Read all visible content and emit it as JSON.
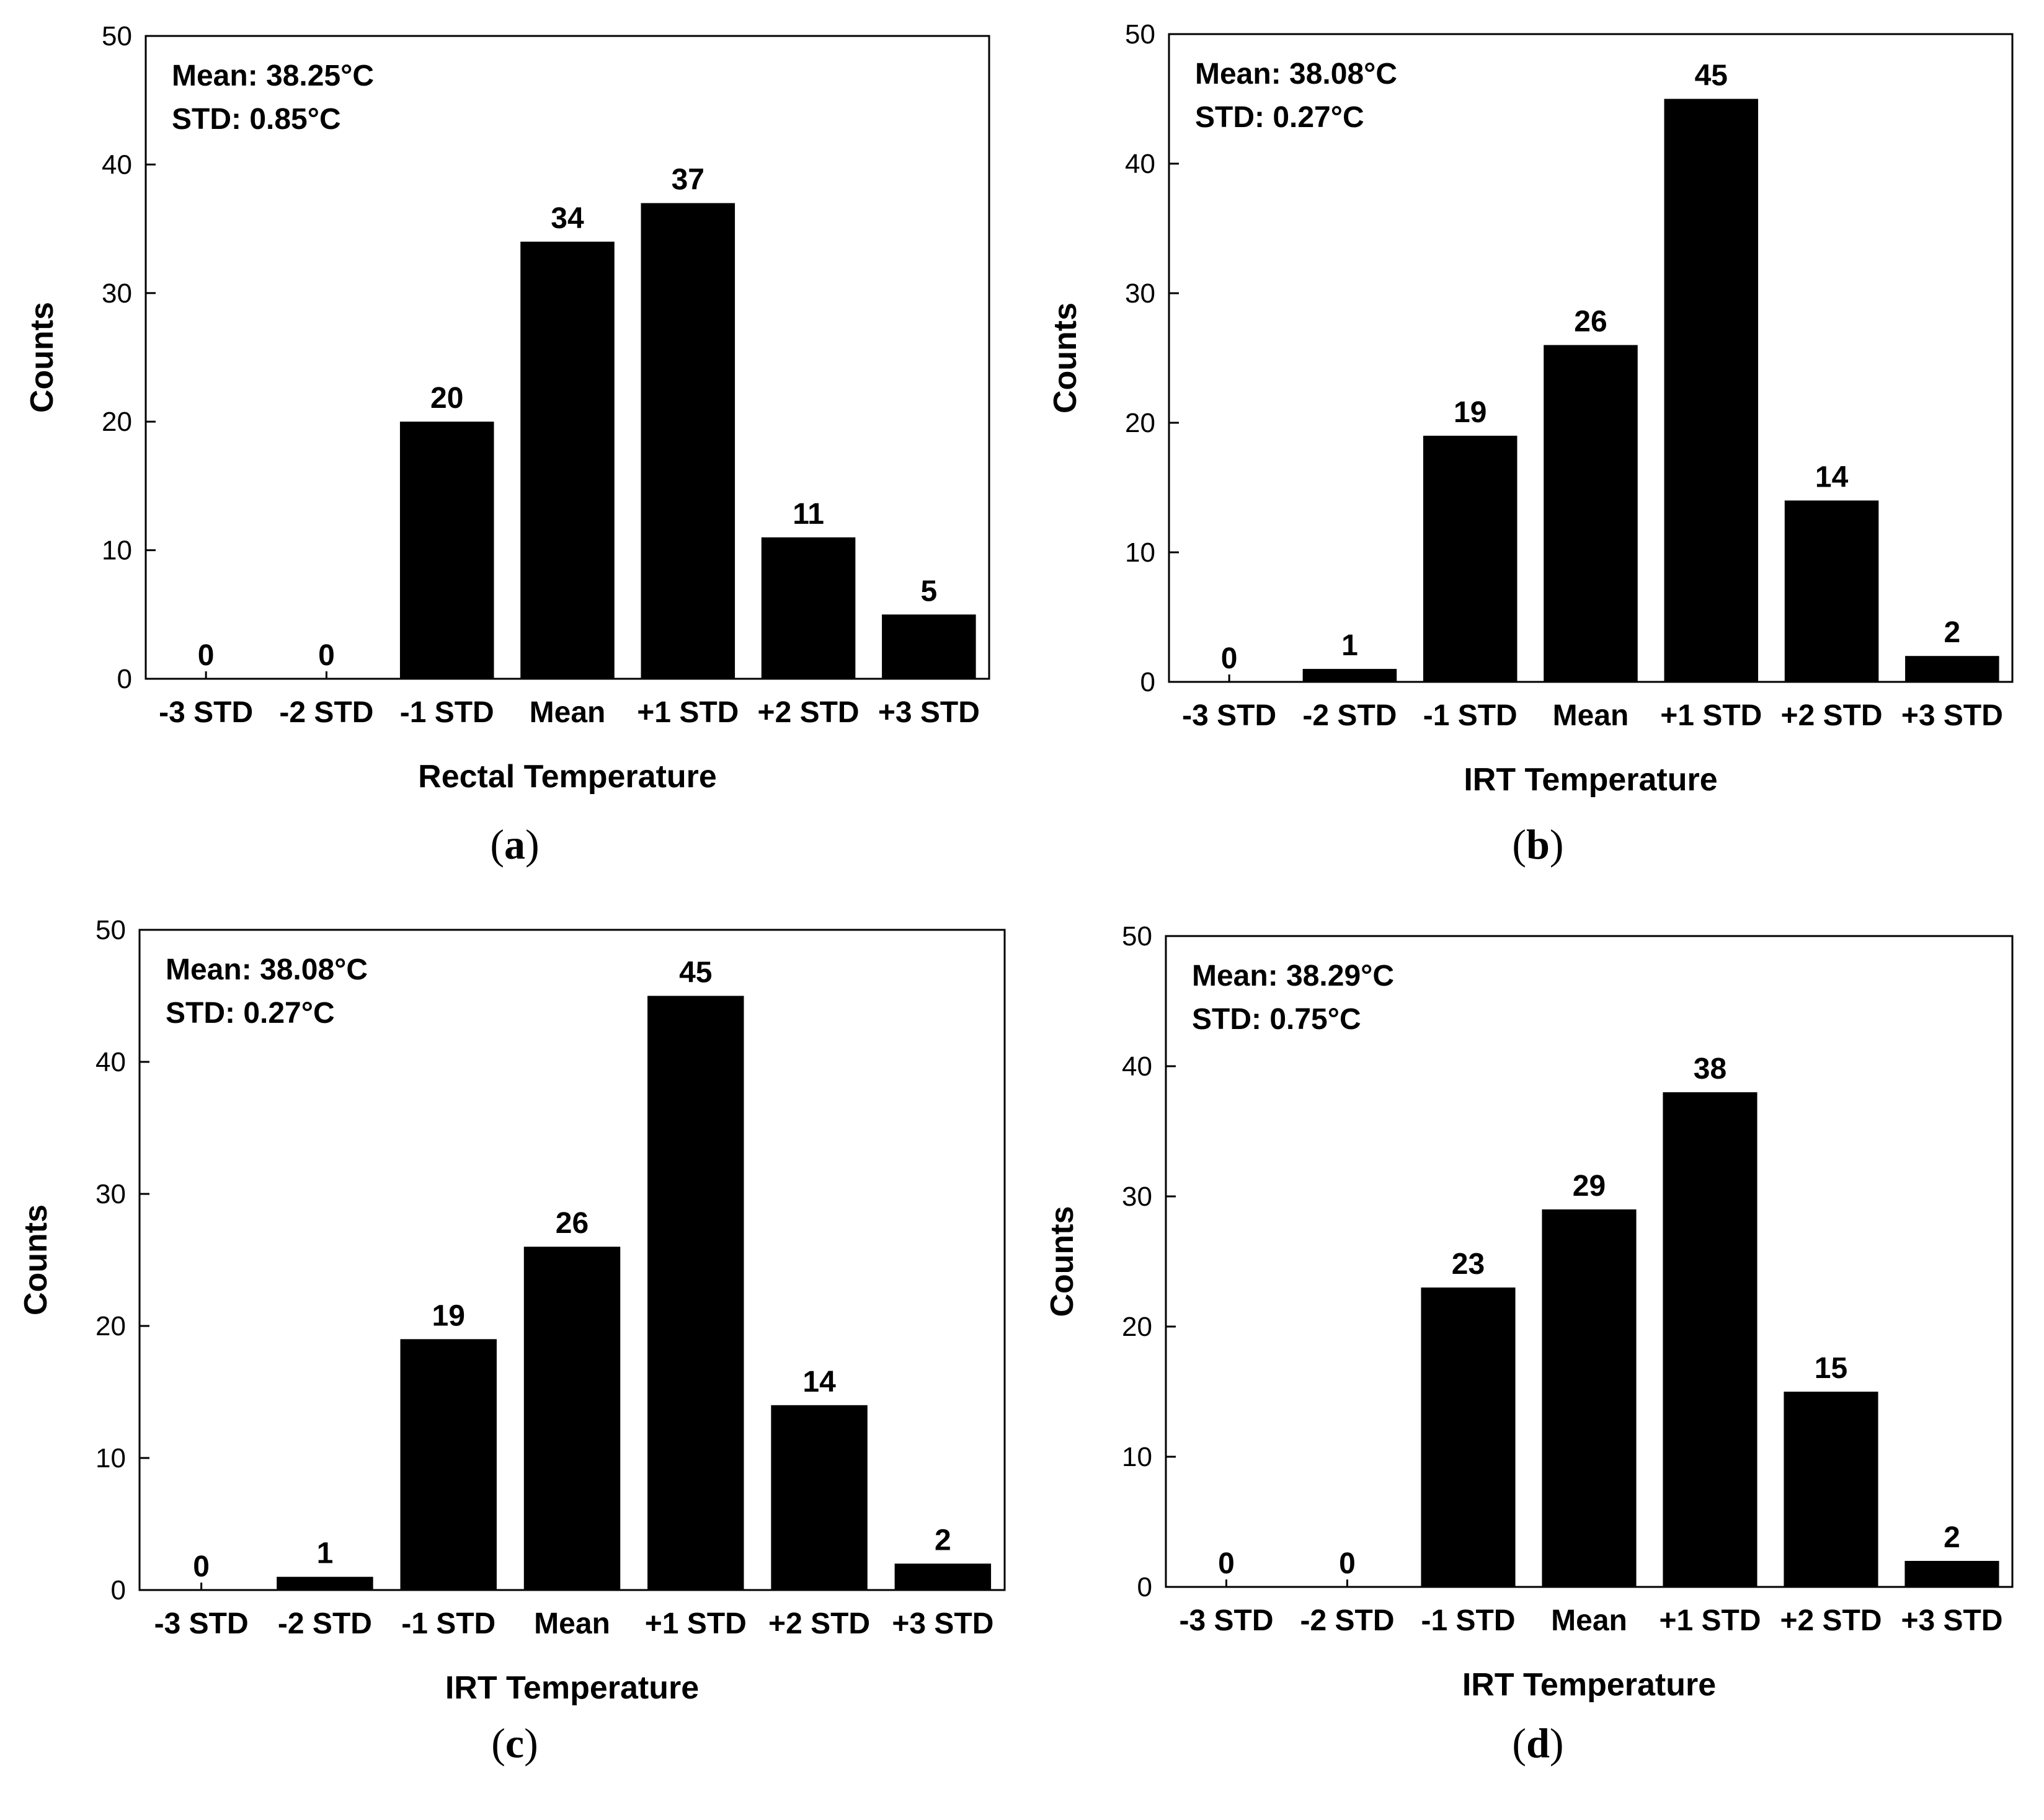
{
  "chart_data": [
    {
      "type": "bar",
      "panel_label": "a",
      "categories": [
        "-3 STD",
        "-2 STD",
        "-1 STD",
        "Mean",
        "+1 STD",
        "+2 STD",
        "+3 STD"
      ],
      "values": [
        0,
        0,
        20,
        34,
        37,
        11,
        5
      ],
      "xlabel": "Rectal Temperature",
      "ylabel": "Counts",
      "ylim": [
        0,
        50
      ],
      "yticks": [
        0,
        10,
        20,
        30,
        40,
        50
      ],
      "stats": {
        "mean": "Mean: 38.25°C",
        "std": "STD: 0.85°C"
      },
      "color": "#000000"
    },
    {
      "type": "bar",
      "panel_label": "b",
      "categories": [
        "-3 STD",
        "-2 STD",
        "-1 STD",
        "Mean",
        "+1 STD",
        "+2 STD",
        "+3 STD"
      ],
      "values": [
        0,
        1,
        19,
        26,
        45,
        14,
        2
      ],
      "xlabel": "IRT Temperature",
      "ylabel": "Counts",
      "ylim": [
        0,
        50
      ],
      "yticks": [
        0,
        10,
        20,
        30,
        40,
        50
      ],
      "stats": {
        "mean": "Mean: 38.08°C",
        "std": "STD: 0.27°C"
      },
      "color": "#000000"
    },
    {
      "type": "bar",
      "panel_label": "c",
      "categories": [
        "-3 STD",
        "-2 STD",
        "-1 STD",
        "Mean",
        "+1 STD",
        "+2 STD",
        "+3 STD"
      ],
      "values": [
        0,
        1,
        19,
        26,
        45,
        14,
        2
      ],
      "xlabel": "IRT Temperature",
      "ylabel": "Counts",
      "ylim": [
        0,
        50
      ],
      "yticks": [
        0,
        10,
        20,
        30,
        40,
        50
      ],
      "stats": {
        "mean": "Mean: 38.08°C",
        "std": "STD: 0.27°C"
      },
      "color": "#000000"
    },
    {
      "type": "bar",
      "panel_label": "d",
      "categories": [
        "-3 STD",
        "-2 STD",
        "-1 STD",
        "Mean",
        "+1 STD",
        "+2 STD",
        "+3 STD"
      ],
      "values": [
        0,
        0,
        23,
        29,
        38,
        15,
        2
      ],
      "xlabel": "IRT Temperature",
      "ylabel": "Counts",
      "ylim": [
        0,
        50
      ],
      "yticks": [
        0,
        10,
        20,
        30,
        40,
        50
      ],
      "stats": {
        "mean": "Mean: 38.29°C",
        "std": "STD: 0.75°C"
      },
      "color": "#000000"
    }
  ]
}
